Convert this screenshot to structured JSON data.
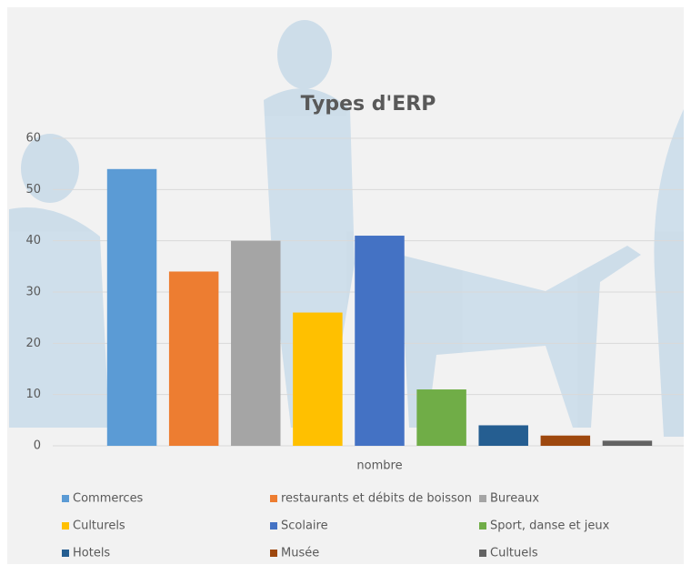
{
  "chart_data": {
    "type": "bar",
    "title": "Types d'ERP",
    "categories": [
      "nombre"
    ],
    "series": [
      {
        "name": "Commerces",
        "color": "#5b9bd5",
        "values": [
          54
        ]
      },
      {
        "name": "restaurants et débits de boisson",
        "color": "#ed7d31",
        "values": [
          34
        ]
      },
      {
        "name": "Bureaux",
        "color": "#a5a5a5",
        "values": [
          40
        ]
      },
      {
        "name": "Culturels",
        "color": "#ffc000",
        "values": [
          26
        ]
      },
      {
        "name": "Scolaire",
        "color": "#4472c4",
        "values": [
          41
        ]
      },
      {
        "name": "Sport, danse et jeux",
        "color": "#70ad47",
        "values": [
          11
        ]
      },
      {
        "name": "Hotels",
        "color": "#255e91",
        "values": [
          4
        ]
      },
      {
        "name": "Musée",
        "color": "#9e480e",
        "values": [
          2
        ]
      },
      {
        "name": "Cultuels",
        "color": "#636363",
        "values": [
          1
        ]
      }
    ],
    "ylim": [
      0,
      60
    ],
    "yticks": [
      0,
      10,
      20,
      30,
      40,
      50,
      60
    ],
    "grid": true,
    "legend": "bottom"
  }
}
